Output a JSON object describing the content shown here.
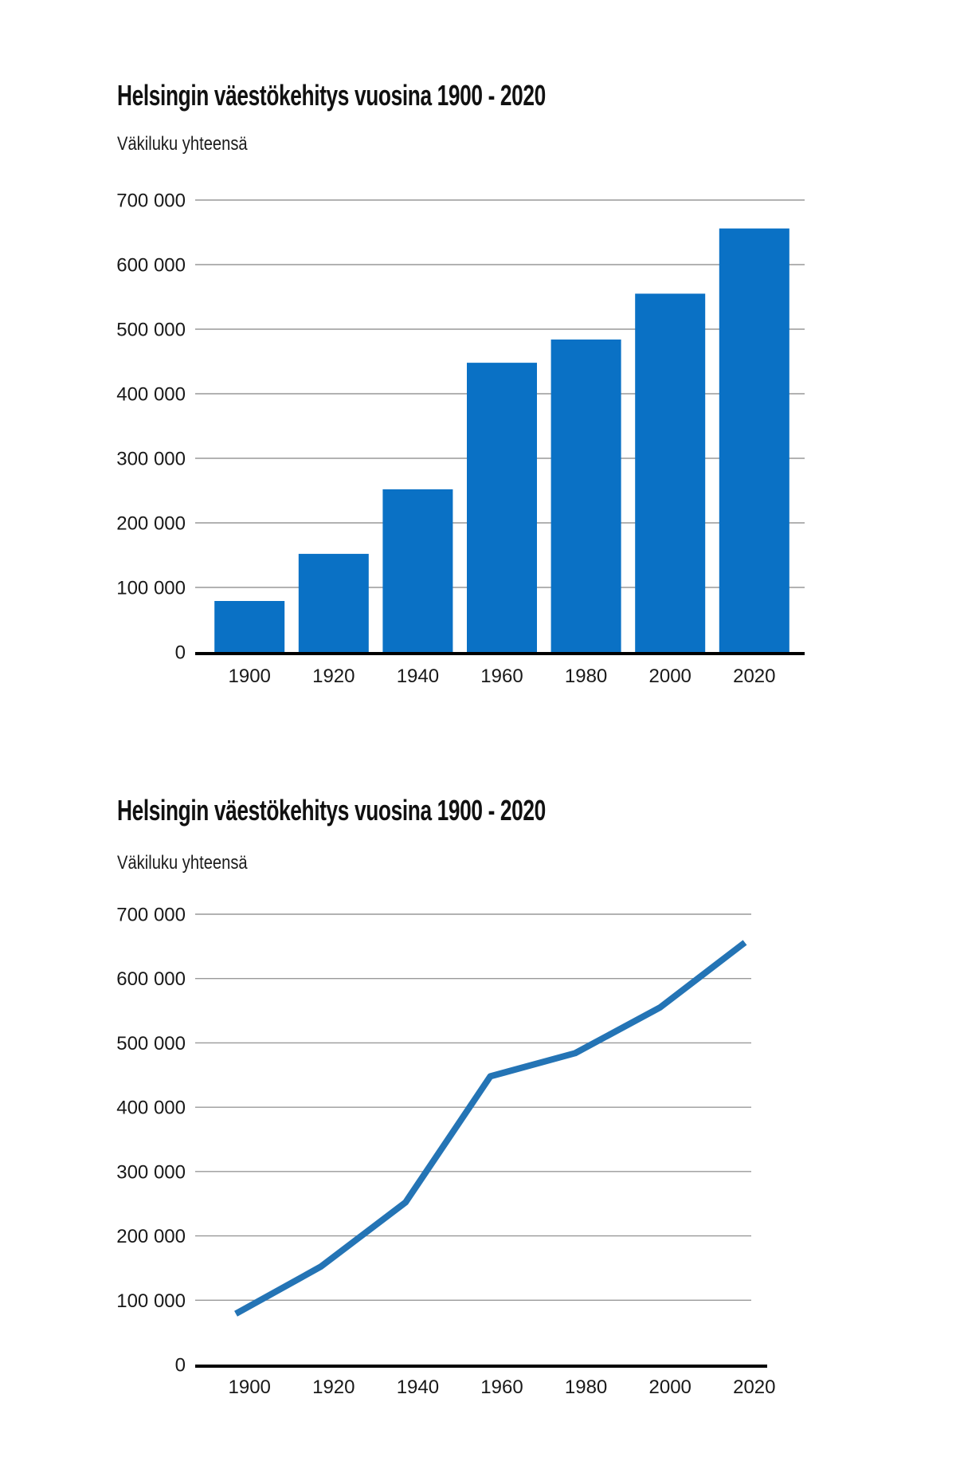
{
  "chart_data": [
    {
      "type": "bar",
      "title": "Helsingin väestökehitys vuosina 1900 - 2020",
      "subtitle": "Väkiluku yhteensä",
      "categories": [
        "1900",
        "1920",
        "1940",
        "1960",
        "1980",
        "2000",
        "2020"
      ],
      "values": [
        79000,
        152000,
        252000,
        448000,
        484000,
        555000,
        656000
      ],
      "xlabel": "",
      "ylabel": "Väkiluku yhteensä",
      "ylim": [
        0,
        700000
      ],
      "ytick_values": [
        700000,
        600000,
        500000,
        400000,
        300000,
        200000,
        100000,
        0
      ],
      "ytick_labels": [
        "700 000",
        "600 000",
        "500 000",
        "400 000",
        "300 000",
        "200 000",
        "100 000",
        "0"
      ],
      "grid": true,
      "legend_position": "none",
      "bar_color": "#0a71c5",
      "gridline_color": "#999999",
      "axis_color": "#000000",
      "text_color": "#191919"
    },
    {
      "type": "line",
      "title": "Helsingin väestökehitys vuosina 1900 - 2020",
      "subtitle": "Väkiluku yhteensä",
      "categories": [
        "1900",
        "1920",
        "1940",
        "1960",
        "1980",
        "2000",
        "2020"
      ],
      "values": [
        79000,
        152000,
        252000,
        448000,
        484000,
        555000,
        656000
      ],
      "xlabel": "",
      "ylabel": "Väkiluku yhteensä",
      "ylim": [
        0,
        700000
      ],
      "ytick_values": [
        700000,
        600000,
        500000,
        400000,
        300000,
        200000,
        100000,
        0
      ],
      "ytick_labels": [
        "700 000",
        "600 000",
        "500 000",
        "400 000",
        "300 000",
        "200 000",
        "100 000",
        "0"
      ],
      "grid": true,
      "legend_position": "none",
      "line_color": "#2474b5",
      "line_width": 8,
      "gridline_color": "#999999",
      "axis_color": "#000000",
      "text_color": "#191919"
    }
  ]
}
